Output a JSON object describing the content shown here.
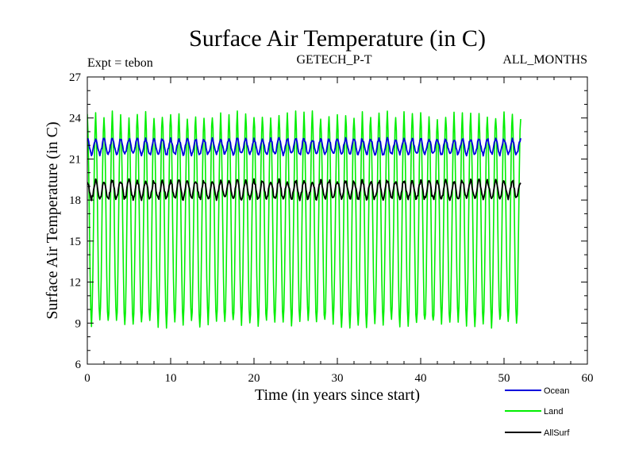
{
  "chart_data": {
    "type": "line",
    "title": "Surface Air Temperature (in C)",
    "subtitle_left": "Expt = tebon",
    "subtitle_center": "GETECH_P-T",
    "subtitle_right": "ALL_MONTHS",
    "xlabel": "Time (in years since start)",
    "ylabel": "Surface Air Temperature (in C)",
    "xlim": [
      0,
      60
    ],
    "ylim": [
      6,
      27
    ],
    "xticks": [
      0,
      10,
      20,
      30,
      40,
      50,
      60
    ],
    "yticks": [
      6,
      9,
      12,
      15,
      18,
      21,
      24,
      27
    ],
    "grid": false,
    "legend_position": "bottom-right",
    "x_end": 52,
    "samples_per_year": 12,
    "series": [
      {
        "name": "Ocean",
        "color": "#0000dd",
        "mean": 21.9,
        "amplitude": 0.55,
        "noise": 0.12
      },
      {
        "name": "Land",
        "color": "#00ee00",
        "mean": 16.4,
        "amplitude": 7.6,
        "noise": 0.35
      },
      {
        "name": "AllSurf",
        "color": "#000000",
        "mean": 18.75,
        "amplitude": 0.65,
        "noise": 0.15
      }
    ]
  }
}
